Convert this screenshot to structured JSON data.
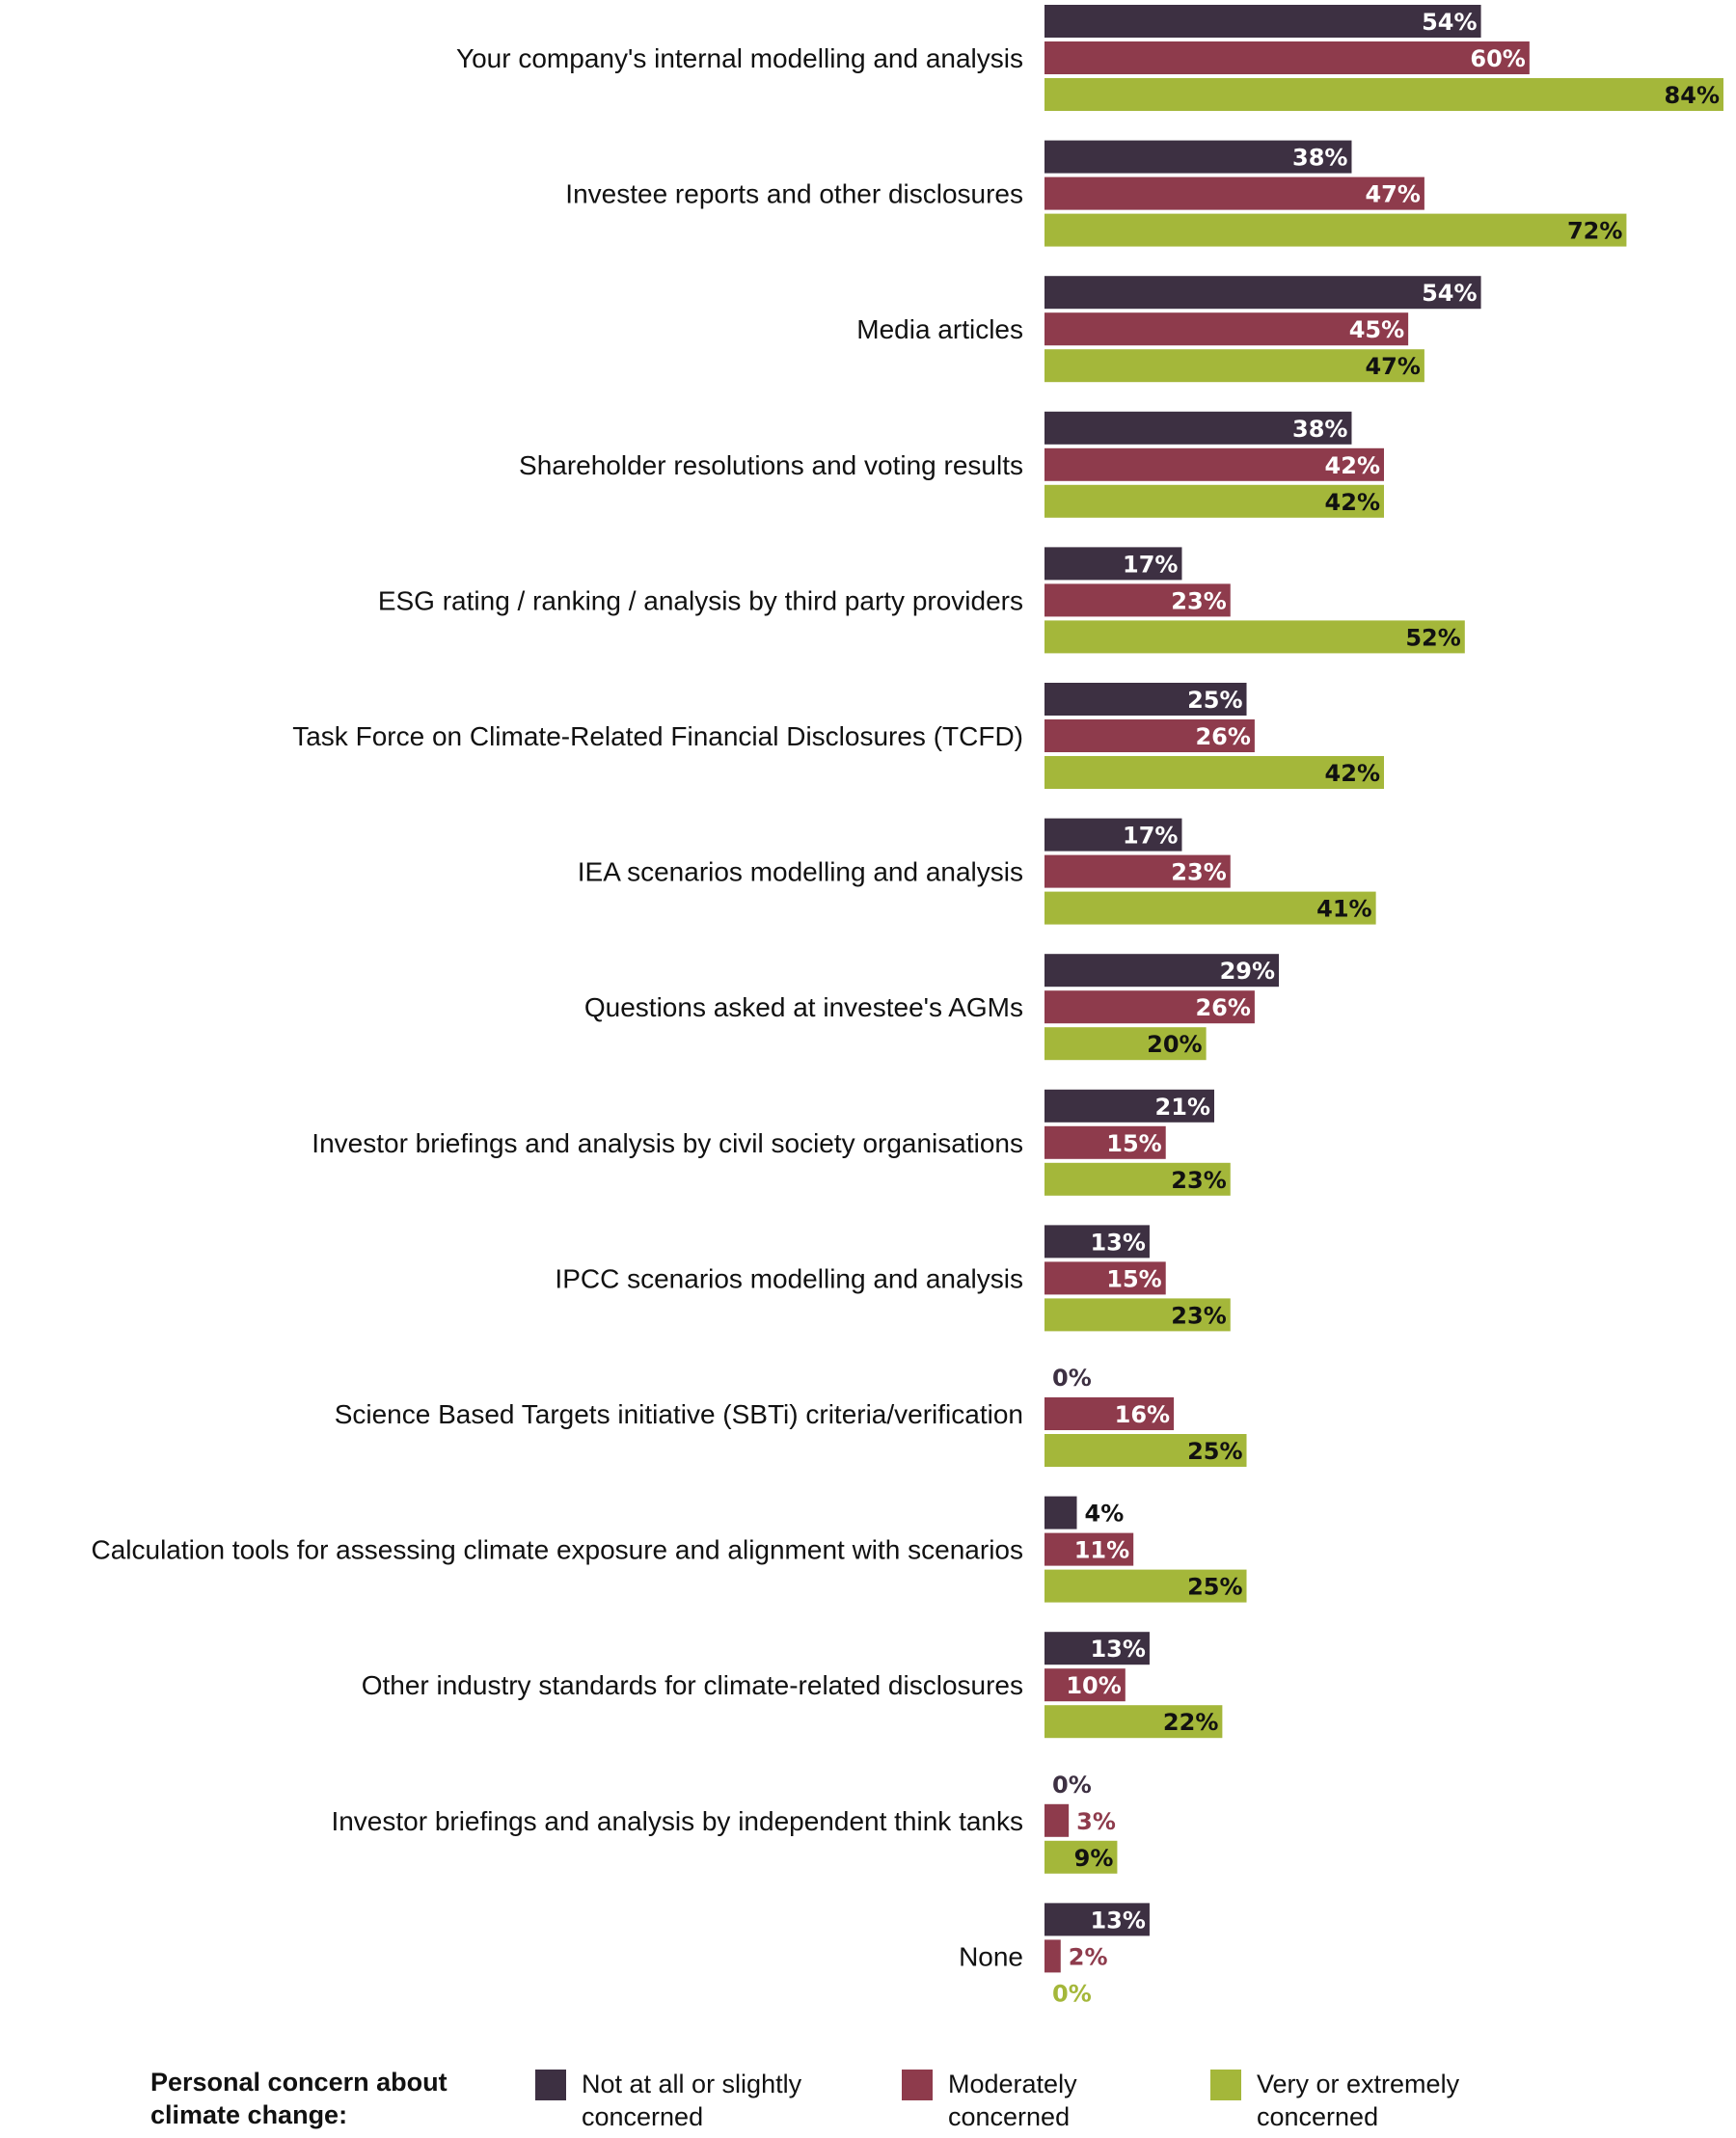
{
  "colors": {
    "not_concerned": "#3d3042",
    "moderately": "#8e3b4c",
    "very": "#a4b73a",
    "label_on_dark": "#ffffff",
    "label_on_green": "#111111"
  },
  "chart_data": {
    "type": "bar",
    "orientation": "horizontal",
    "title": "",
    "xlabel": "",
    "ylabel": "",
    "xlim": [
      0,
      84
    ],
    "value_suffix": "%",
    "categories": [
      "Your company's internal modelling and analysis",
      "Investee reports and other disclosures",
      "Media articles",
      "Shareholder resolutions and voting results",
      "ESG rating / ranking / analysis by third party providers",
      "Task Force on Climate-Related Financial Disclosures (TCFD)",
      "IEA scenarios modelling and analysis",
      "Questions asked at investee's AGMs",
      "Investor briefings and analysis by civil society organisations",
      "IPCC scenarios modelling and analysis",
      "Science Based Targets initiative (SBTi) criteria/verification",
      "Calculation tools for assessing climate exposure and alignment with scenarios",
      "Other industry standards for climate-related disclosures",
      "Investor briefings and analysis by independent think tanks",
      "None"
    ],
    "series": [
      {
        "name": "Not at all or slightly concerned",
        "values": [
          54,
          38,
          54,
          38,
          17,
          25,
          17,
          29,
          21,
          13,
          0,
          4,
          13,
          0,
          13
        ]
      },
      {
        "name": "Moderately concerned",
        "values": [
          60,
          47,
          45,
          42,
          23,
          26,
          23,
          26,
          15,
          15,
          16,
          11,
          10,
          3,
          2
        ]
      },
      {
        "name": "Very or extremely concerned",
        "values": [
          84,
          72,
          47,
          42,
          52,
          42,
          41,
          20,
          23,
          23,
          25,
          25,
          22,
          9,
          0
        ]
      }
    ],
    "legend": {
      "title": "Personal concern about climate change:",
      "position": "bottom",
      "items": [
        "Not at all or slightly concerned",
        "Moderately concerned",
        "Very or extremely concerned"
      ]
    }
  }
}
